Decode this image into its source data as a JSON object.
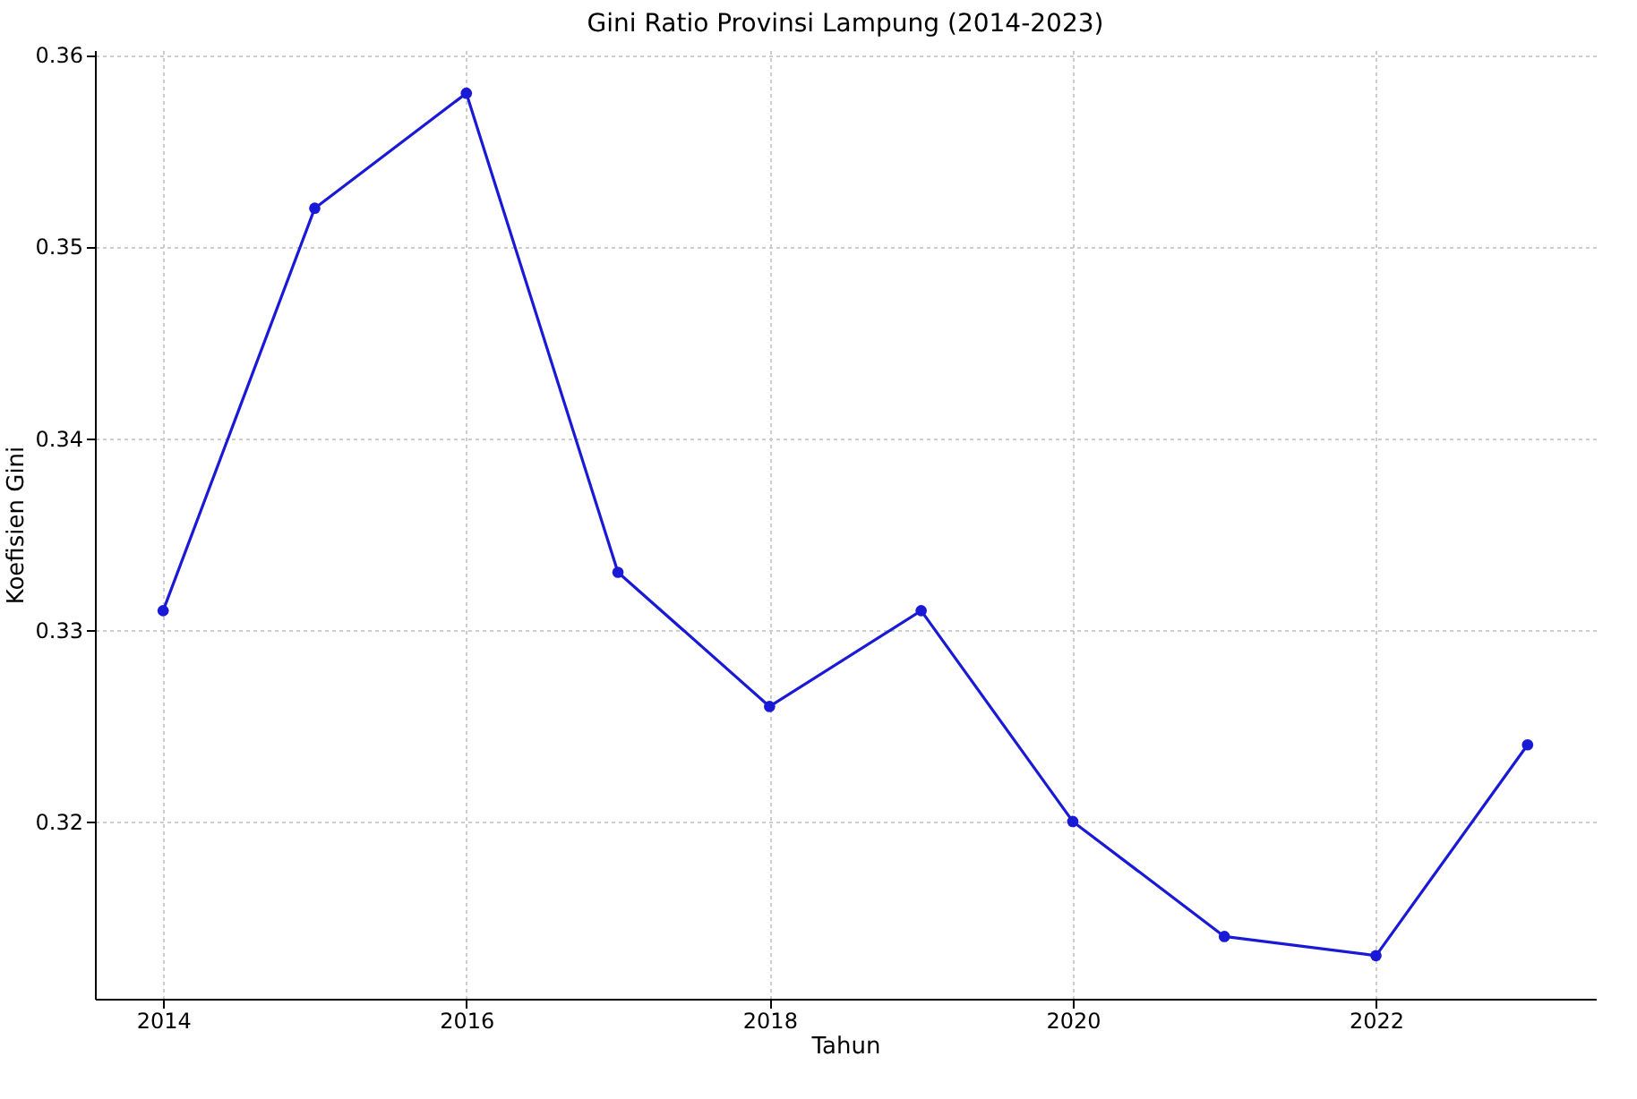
{
  "chart_data": {
    "type": "line",
    "title": "Gini Ratio Provinsi Lampung (2014-2023)",
    "xlabel": "Tahun",
    "ylabel": "Koefisien Gini",
    "x": [
      2014,
      2015,
      2016,
      2017,
      2018,
      2019,
      2020,
      2021,
      2022,
      2023
    ],
    "series": [
      {
        "color": "#1a1ad6",
        "values": [
          0.331,
          0.352,
          0.358,
          0.333,
          0.326,
          0.331,
          0.32,
          0.314,
          0.313,
          0.324
        ]
      }
    ],
    "xlim": [
      2013.55,
      2023.45
    ],
    "xticks": [
      2014,
      2016,
      2018,
      2020,
      2022
    ],
    "ylim": [
      0.31075,
      0.36025
    ],
    "yticks": [
      0.32,
      0.33,
      0.34,
      0.35,
      0.36
    ],
    "grid": true,
    "marker": "circle",
    "line_style": "solid"
  }
}
